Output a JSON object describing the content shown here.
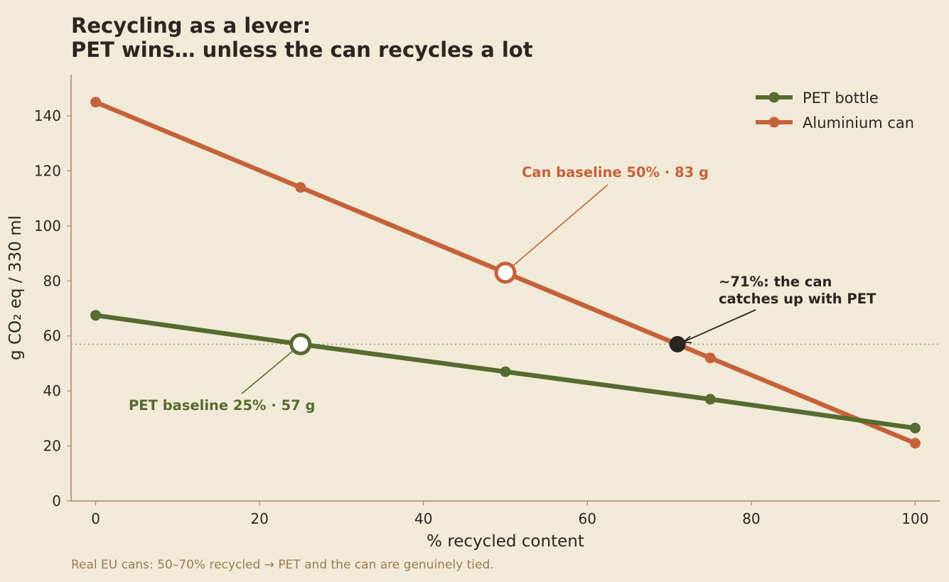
{
  "chart_data": {
    "type": "line",
    "title_line1": "Recycling as a lever:",
    "title_line2": "PET wins… unless the can recycles a lot",
    "xlabel": "% recycled content",
    "ylabel": "g CO₂ eq / 330 ml",
    "xlim": [
      -3,
      103
    ],
    "ylim": [
      0,
      155
    ],
    "xticks": [
      0,
      20,
      40,
      60,
      80,
      100
    ],
    "yticks": [
      0,
      20,
      40,
      60,
      80,
      100,
      120,
      140
    ],
    "grid": false,
    "legend_position": "top-right",
    "series": [
      {
        "name": "PET bottle",
        "color": "#556b2f",
        "x": [
          0,
          25,
          50,
          75,
          100
        ],
        "y": [
          67.5,
          57,
          47,
          37,
          26.5
        ]
      },
      {
        "name": "Aluminium can",
        "color": "#c4623a",
        "x": [
          0,
          25,
          50,
          75,
          100
        ],
        "y": [
          145,
          114,
          83,
          52,
          21
        ]
      }
    ],
    "reference_line": {
      "y": 57,
      "style": "dotted",
      "color": "#b0906a"
    },
    "highlights": [
      {
        "series": "PET bottle",
        "x": 25,
        "y": 57
      },
      {
        "series": "Aluminium can",
        "x": 50,
        "y": 83
      }
    ],
    "crossover": {
      "x": 71,
      "y": 57,
      "color": "#2a2622"
    },
    "annotations": [
      {
        "text": "Can baseline 50% · 83 g",
        "color": "#c4623a",
        "target": [
          50,
          83
        ]
      },
      {
        "text": "PET baseline 25% · 57 g",
        "color": "#556b2f",
        "target": [
          25,
          57
        ]
      },
      {
        "lines": [
          "~71%: the can",
          "catches up with PET"
        ],
        "color": "#2a2622",
        "target": [
          71,
          57
        ]
      }
    ],
    "footnote": "Real EU cans: 50–70% recycled → PET and the can are genuinely tied."
  }
}
